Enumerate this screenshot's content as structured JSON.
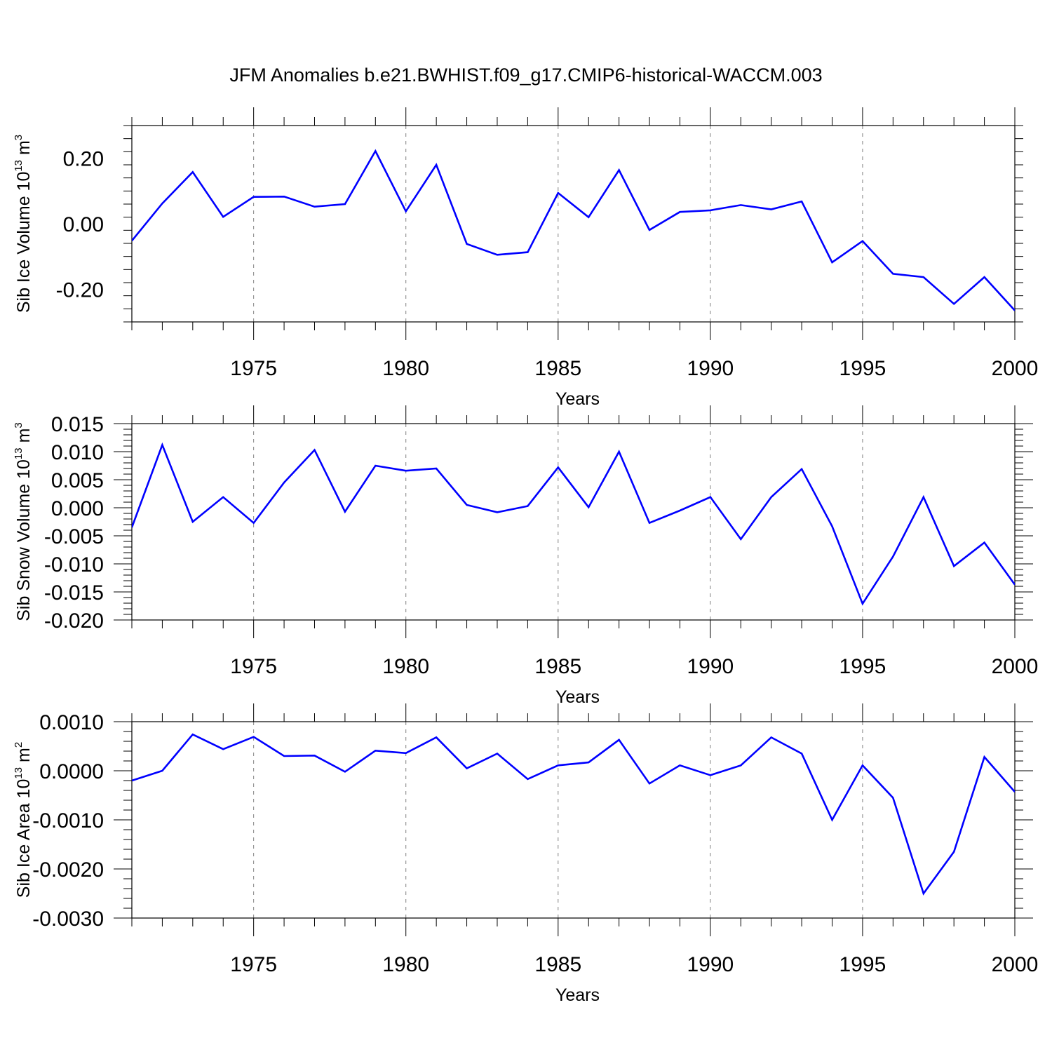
{
  "chart_data": {
    "title": "JFM Anomalies b.e21.BWHIST.f09_g17.CMIP6-historical-WACCM.003",
    "line_color": "#0000ff",
    "panels": [
      {
        "type": "line",
        "name": "ice-volume",
        "ylabel_main": "Sib Ice Volume 10",
        "ylabel_exp": "13",
        "ylabel_unit": " m",
        "ylabel_unit_exp": "3",
        "xlabel": "Years",
        "xlim": [
          1971,
          2000
        ],
        "ylim": [
          -0.3,
          0.3
        ],
        "yticks": [
          -0.2,
          0.0,
          0.2
        ],
        "ytick_labels": [
          "-0.20",
          "0.00",
          "0.20"
        ],
        "xticks": [
          1975,
          1980,
          1985,
          1990,
          1995,
          2000
        ],
        "xtick_labels": [
          "1975",
          "1980",
          "1985",
          "1990",
          "1995",
          "2000"
        ],
        "x": [
          1971,
          1972,
          1973,
          1974,
          1975,
          1976,
          1977,
          1978,
          1979,
          1980,
          1981,
          1982,
          1983,
          1984,
          1985,
          1986,
          1987,
          1988,
          1989,
          1990,
          1991,
          1992,
          1993,
          1994,
          1995,
          1996,
          1997,
          1998,
          1999,
          2000
        ],
        "values": [
          -0.052,
          0.062,
          0.158,
          0.021,
          0.082,
          0.083,
          0.052,
          0.06,
          0.222,
          0.038,
          0.18,
          -0.062,
          -0.095,
          -0.087,
          0.094,
          0.02,
          0.164,
          -0.019,
          0.036,
          0.041,
          0.057,
          0.044,
          0.068,
          -0.118,
          -0.053,
          -0.153,
          -0.163,
          -0.245,
          -0.163,
          -0.265
        ]
      },
      {
        "type": "line",
        "name": "snow-volume",
        "ylabel_main": "Sib Snow Volume 10",
        "ylabel_exp": "13",
        "ylabel_unit": " m",
        "ylabel_unit_exp": "3",
        "xlabel": "Years",
        "xlim": [
          1971,
          2000
        ],
        "ylim": [
          -0.02,
          0.015
        ],
        "yticks": [
          -0.02,
          -0.015,
          -0.01,
          -0.005,
          0.0,
          0.005,
          0.01,
          0.015
        ],
        "ytick_labels": [
          "-0.020",
          "-0.015",
          "-0.010",
          "-0.005",
          "0.000",
          "0.005",
          "0.010",
          "0.015"
        ],
        "xticks": [
          1975,
          1980,
          1985,
          1990,
          1995,
          2000
        ],
        "xtick_labels": [
          "1975",
          "1980",
          "1985",
          "1990",
          "1995",
          "2000"
        ],
        "x": [
          1971,
          1972,
          1973,
          1974,
          1975,
          1976,
          1977,
          1978,
          1979,
          1980,
          1981,
          1982,
          1983,
          1984,
          1985,
          1986,
          1987,
          1988,
          1989,
          1990,
          1991,
          1992,
          1993,
          1994,
          1995,
          1996,
          1997,
          1998,
          1999,
          2000
        ],
        "values": [
          -0.0035,
          0.0112,
          -0.0025,
          0.0019,
          -0.0027,
          0.0045,
          0.0103,
          -0.0007,
          0.0075,
          0.0066,
          0.007,
          0.0005,
          -0.0008,
          0.0003,
          0.0072,
          0.0001,
          0.01,
          -0.0027,
          -0.0005,
          0.0019,
          -0.0056,
          0.0019,
          0.0069,
          -0.0033,
          -0.0171,
          -0.0087,
          0.0019,
          -0.0104,
          -0.0062,
          -0.0137
        ]
      },
      {
        "type": "line",
        "name": "ice-area",
        "ylabel_main": "Sib Ice Area 10",
        "ylabel_exp": "13",
        "ylabel_unit": " m",
        "ylabel_unit_exp": "2",
        "xlabel": "Years",
        "xlim": [
          1971,
          2000
        ],
        "ylim": [
          -0.003,
          0.001
        ],
        "yticks": [
          -0.003,
          -0.002,
          -0.001,
          0.0,
          0.001
        ],
        "ytick_labels": [
          "-0.0030",
          "-0.0020",
          "-0.0010",
          "0.0000",
          "0.0010"
        ],
        "xticks": [
          1975,
          1980,
          1985,
          1990,
          1995,
          2000
        ],
        "xtick_labels": [
          "1975",
          "1980",
          "1985",
          "1990",
          "1995",
          "2000"
        ],
        "x": [
          1971,
          1972,
          1973,
          1974,
          1975,
          1976,
          1977,
          1978,
          1979,
          1980,
          1981,
          1982,
          1983,
          1984,
          1985,
          1986,
          1987,
          1988,
          1989,
          1990,
          1991,
          1992,
          1993,
          1994,
          1995,
          1996,
          1997,
          1998,
          1999,
          2000
        ],
        "values": [
          -0.0002,
          0.0,
          0.00074,
          0.00044,
          0.00069,
          0.0003,
          0.00031,
          -2e-05,
          0.00041,
          0.00036,
          0.00068,
          5e-05,
          0.00035,
          -0.00017,
          0.00011,
          0.00017,
          0.00063,
          -0.00026,
          0.00011,
          -9e-05,
          0.00011,
          0.00068,
          0.00035,
          -0.001,
          0.00011,
          -0.00055,
          -0.0025,
          -0.00165,
          0.00028,
          -0.00043
        ]
      }
    ]
  }
}
